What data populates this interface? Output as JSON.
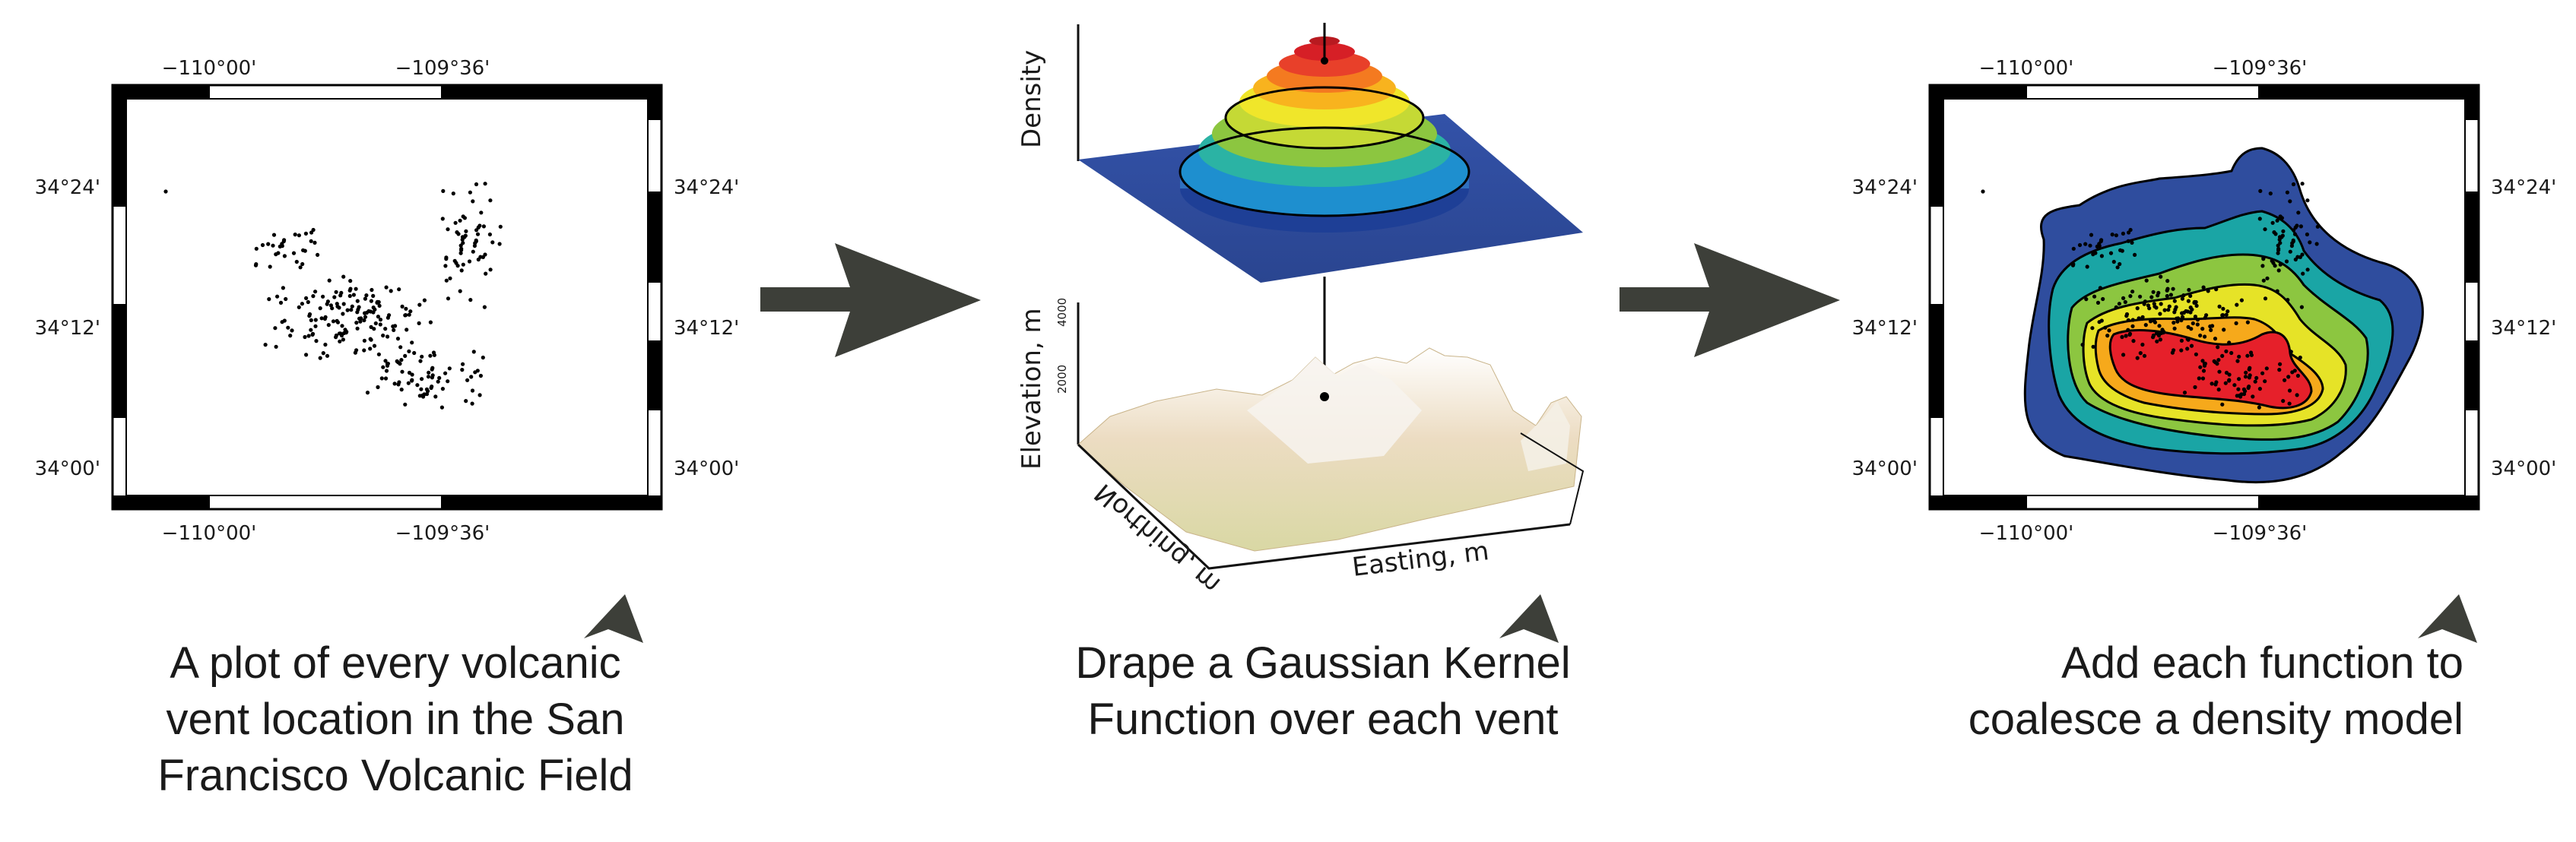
{
  "panels": [
    {
      "id": "vent-map",
      "lon_labels": [
        "−110°00'",
        "−109°36'"
      ],
      "lat_labels": [
        "34°24'",
        "34°12'",
        "34°00'"
      ],
      "caption": [
        "A plot of every volcanic",
        "vent location in the San",
        "Francisco Volcanic Field"
      ]
    },
    {
      "id": "kernel-3d",
      "density_label": "Density",
      "elevation_label": "Elevation, m",
      "elevation_ticks": [
        "4000",
        "2000"
      ],
      "northing_label": "Northing, m",
      "easting_label": "Easting, m",
      "caption": [
        "Drape a Gaussian Kernel",
        "Function over each vent"
      ]
    },
    {
      "id": "density-map",
      "lon_labels": [
        "−110°00'",
        "−109°36'"
      ],
      "lat_labels": [
        "34°24'",
        "34°12'",
        "34°00'"
      ],
      "caption": [
        "Add each function to",
        "coalesce a density model"
      ]
    }
  ],
  "colors": {
    "arrow": "#3d3f39",
    "density_ramp": [
      "#2f4d9e",
      "#1aa5a5",
      "#8cc640",
      "#e6e327",
      "#f6a91b",
      "#e6202a"
    ],
    "terrain": "#e8d9b8"
  },
  "icons": [
    "arrow-right-icon",
    "north-arrow-icon"
  ]
}
